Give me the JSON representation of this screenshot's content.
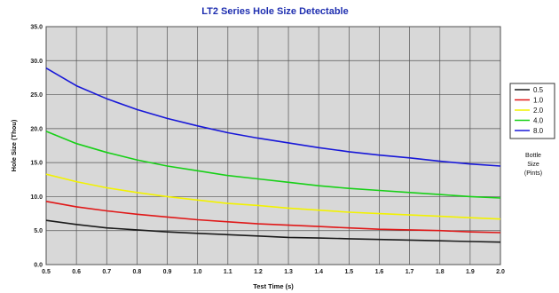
{
  "chart_data": {
    "type": "line",
    "title": "LT2 Series Hole Size Detectable",
    "xlabel": "Test Time (s)",
    "ylabel": "Hole Size (Thou)",
    "xlim": [
      0.5,
      2.0
    ],
    "ylim": [
      0,
      35
    ],
    "x_ticks": [
      "0.5",
      "0.6",
      "0.7",
      "0.8",
      "0.9",
      "1.0",
      "1.1",
      "1.2",
      "1.3",
      "1.4",
      "1.5",
      "1.6",
      "1.7",
      "1.8",
      "1.9",
      "2.0"
    ],
    "y_ticks": [
      "0.0",
      "5.0",
      "10.0",
      "15.0",
      "20.0",
      "25.0",
      "30.0",
      "35.0"
    ],
    "grid": true,
    "legend_position": "right",
    "legend_note": [
      "Bottle",
      "Size",
      "(Pints)"
    ],
    "x": [
      0.5,
      0.6,
      0.7,
      0.8,
      0.9,
      1.0,
      1.1,
      1.2,
      1.3,
      1.4,
      1.5,
      1.6,
      1.7,
      1.8,
      1.9,
      2.0
    ],
    "series": [
      {
        "name": "0.5",
        "color": "#1a1a1a",
        "values": [
          6.5,
          5.9,
          5.4,
          5.1,
          4.8,
          4.6,
          4.4,
          4.2,
          4.0,
          3.9,
          3.8,
          3.7,
          3.6,
          3.5,
          3.4,
          3.3
        ]
      },
      {
        "name": "1.0",
        "color": "#e01818",
        "values": [
          9.3,
          8.5,
          7.9,
          7.4,
          7.0,
          6.6,
          6.3,
          6.0,
          5.8,
          5.6,
          5.4,
          5.2,
          5.1,
          5.0,
          4.8,
          4.7
        ]
      },
      {
        "name": "2.0",
        "color": "#f2f200",
        "values": [
          13.3,
          12.2,
          11.3,
          10.6,
          10.0,
          9.5,
          9.0,
          8.7,
          8.3,
          8.0,
          7.7,
          7.5,
          7.3,
          7.1,
          6.9,
          6.7
        ]
      },
      {
        "name": "4.0",
        "color": "#18d018",
        "values": [
          19.6,
          17.8,
          16.5,
          15.4,
          14.5,
          13.8,
          13.1,
          12.6,
          12.1,
          11.6,
          11.2,
          10.9,
          10.6,
          10.3,
          10.0,
          9.8
        ]
      },
      {
        "name": "8.0",
        "color": "#1818d8",
        "values": [
          28.9,
          26.3,
          24.4,
          22.8,
          21.5,
          20.4,
          19.4,
          18.6,
          17.9,
          17.2,
          16.6,
          16.1,
          15.7,
          15.2,
          14.8,
          14.5
        ]
      }
    ]
  }
}
